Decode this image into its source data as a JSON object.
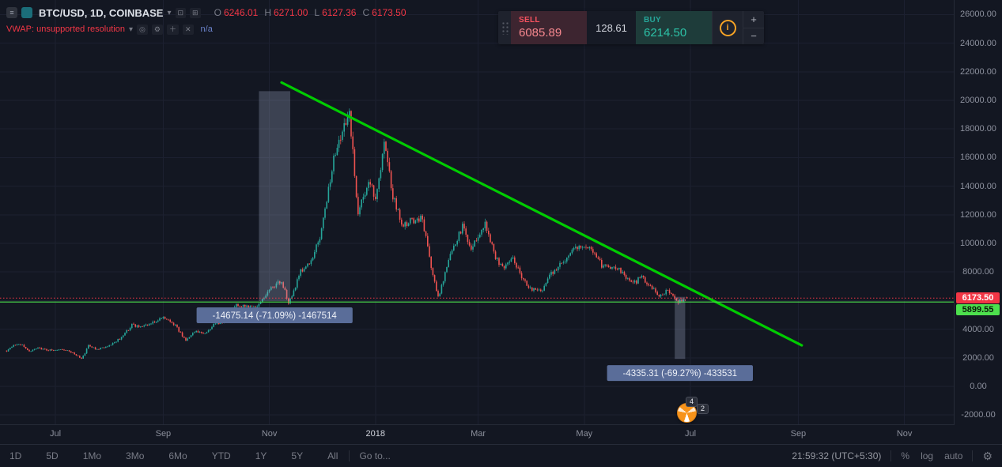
{
  "icons": {
    "menu": "≡",
    "caret_down": "▾",
    "tool1": "⊡",
    "tool2": "⊞",
    "eye": "◎",
    "gear": "⚙",
    "plus_square": "＋",
    "close": "✕",
    "info": "i",
    "plus": "+",
    "minus": "−"
  },
  "header": {
    "symbol_title": "BTC/USD, 1D, COINBASE",
    "ohlc": {
      "o_label": "O",
      "o_value": "6246.01",
      "h_label": "H",
      "h_value": "6271.00",
      "l_label": "L",
      "l_value": "6127.36",
      "c_label": "C",
      "c_value": "6173.50"
    },
    "indicator": {
      "name": "VWAP: unsupported resolution",
      "value": "n/a"
    }
  },
  "trade_widget": {
    "sell_label": "SELL",
    "sell_price": "6085.89",
    "spread": "128.61",
    "buy_label": "BUY",
    "buy_price": "6214.50"
  },
  "price_axis": {
    "labels": [
      {
        "price": 26000,
        "label": "26000.00"
      },
      {
        "price": 24000,
        "label": "24000.00"
      },
      {
        "price": 22000,
        "label": "22000.00"
      },
      {
        "price": 20000,
        "label": "20000.00"
      },
      {
        "price": 18000,
        "label": "18000.00"
      },
      {
        "price": 16000,
        "label": "16000.00"
      },
      {
        "price": 14000,
        "label": "14000.00"
      },
      {
        "price": 12000,
        "label": "12000.00"
      },
      {
        "price": 10000,
        "label": "10000.00"
      },
      {
        "price": 8000,
        "label": "8000.00"
      },
      {
        "price": 4000,
        "label": "4000.00"
      },
      {
        "price": 2000,
        "label": "2000.00"
      },
      {
        "price": 0,
        "label": "0.00"
      },
      {
        "price": -2000,
        "label": "-2000.00"
      }
    ],
    "badges": [
      {
        "price": 6173.5,
        "value": "6173.50",
        "bg": "#f23645",
        "fg": "#ffffff"
      },
      {
        "price": 5899.55,
        "value": "5899.55",
        "bg": "#4de04d",
        "fg": "#0b1a0b"
      }
    ]
  },
  "time_axis": {
    "ticks": [
      {
        "label": "Jul",
        "date": "2017-07-01",
        "year": false
      },
      {
        "label": "Sep",
        "date": "2017-09-01",
        "year": false
      },
      {
        "label": "Nov",
        "date": "2017-11-01",
        "year": false
      },
      {
        "label": "2018",
        "date": "2018-01-01",
        "year": true
      },
      {
        "label": "Mar",
        "date": "2018-03-01",
        "year": false
      },
      {
        "label": "May",
        "date": "2018-05-01",
        "year": false
      },
      {
        "label": "Jul",
        "date": "2018-07-01",
        "year": false
      },
      {
        "label": "Sep",
        "date": "2018-09-01",
        "year": false
      },
      {
        "label": "Nov",
        "date": "2018-11-01",
        "year": false
      }
    ]
  },
  "bottom_toolbar": {
    "ranges": [
      "1D",
      "5D",
      "1Mo",
      "3Mo",
      "6Mo",
      "YTD",
      "1Y",
      "5Y",
      "All"
    ],
    "goto": "Go to...",
    "clock": "21:59:32 (UTC+5:30)",
    "scales": [
      "%",
      "log",
      "auto"
    ]
  },
  "chart_data": {
    "type": "candlestick",
    "symbol": "BTC/USD",
    "interval": "1D",
    "exchange": "COINBASE",
    "last": {
      "open": 6246.01,
      "high": 6271.0,
      "low": 6127.36,
      "close": 6173.5
    },
    "y_axis": {
      "min": -2000,
      "max": 26000,
      "tick_step": 2000
    },
    "colors": {
      "up": "#26a69a",
      "down": "#ef5350",
      "trend": "#00cc00",
      "grid": "#1c2030",
      "measure_fill": "rgba(168,180,208,0.28)",
      "measure_label_bg": "#5a6d99",
      "measure_label_fg": "#edf0f7"
    },
    "price_path": [
      {
        "date": "2017-06-03",
        "price": 2480
      },
      {
        "date": "2017-06-07",
        "price": 2840
      },
      {
        "date": "2017-06-12",
        "price": 2950
      },
      {
        "date": "2017-06-16",
        "price": 2450
      },
      {
        "date": "2017-06-21",
        "price": 2700
      },
      {
        "date": "2017-06-26",
        "price": 2550
      },
      {
        "date": "2017-07-02",
        "price": 2550
      },
      {
        "date": "2017-07-08",
        "price": 2560
      },
      {
        "date": "2017-07-11",
        "price": 2330
      },
      {
        "date": "2017-07-16",
        "price": 1950
      },
      {
        "date": "2017-07-20",
        "price": 2850
      },
      {
        "date": "2017-07-25",
        "price": 2580
      },
      {
        "date": "2017-08-01",
        "price": 2870
      },
      {
        "date": "2017-08-08",
        "price": 3430
      },
      {
        "date": "2017-08-14",
        "price": 4320
      },
      {
        "date": "2017-08-19",
        "price": 4150
      },
      {
        "date": "2017-08-25",
        "price": 4350
      },
      {
        "date": "2017-09-01",
        "price": 4900
      },
      {
        "date": "2017-09-08",
        "price": 4250
      },
      {
        "date": "2017-09-14",
        "price": 3250
      },
      {
        "date": "2017-09-20",
        "price": 3900
      },
      {
        "date": "2017-09-25",
        "price": 3680
      },
      {
        "date": "2017-10-01",
        "price": 4400
      },
      {
        "date": "2017-10-08",
        "price": 4600
      },
      {
        "date": "2017-10-13",
        "price": 5700
      },
      {
        "date": "2017-10-18",
        "price": 5550
      },
      {
        "date": "2017-10-24",
        "price": 5520
      },
      {
        "date": "2017-11-01",
        "price": 6750
      },
      {
        "date": "2017-11-08",
        "price": 7400
      },
      {
        "date": "2017-11-12",
        "price": 5900
      },
      {
        "date": "2017-11-19",
        "price": 8000
      },
      {
        "date": "2017-11-25",
        "price": 8750
      },
      {
        "date": "2017-12-01",
        "price": 10900
      },
      {
        "date": "2017-12-08",
        "price": 16200
      },
      {
        "date": "2017-12-12",
        "price": 17200
      },
      {
        "date": "2017-12-17",
        "price": 19500
      },
      {
        "date": "2017-12-22",
        "price": 12300
      },
      {
        "date": "2017-12-28",
        "price": 14400
      },
      {
        "date": "2018-01-01",
        "price": 13250
      },
      {
        "date": "2018-01-06",
        "price": 17150
      },
      {
        "date": "2018-01-11",
        "price": 13300
      },
      {
        "date": "2018-01-17",
        "price": 11200
      },
      {
        "date": "2018-01-21",
        "price": 11600
      },
      {
        "date": "2018-01-28",
        "price": 11750
      },
      {
        "date": "2018-02-01",
        "price": 9050
      },
      {
        "date": "2018-02-06",
        "price": 6250
      },
      {
        "date": "2018-02-12",
        "price": 8900
      },
      {
        "date": "2018-02-20",
        "price": 11250
      },
      {
        "date": "2018-02-25",
        "price": 9650
      },
      {
        "date": "2018-03-05",
        "price": 11500
      },
      {
        "date": "2018-03-11",
        "price": 9100
      },
      {
        "date": "2018-03-15",
        "price": 8250
      },
      {
        "date": "2018-03-21",
        "price": 8950
      },
      {
        "date": "2018-03-30",
        "price": 6850
      },
      {
        "date": "2018-04-06",
        "price": 6650
      },
      {
        "date": "2018-04-12",
        "price": 7900
      },
      {
        "date": "2018-04-20",
        "price": 8850
      },
      {
        "date": "2018-04-24",
        "price": 9650
      },
      {
        "date": "2018-05-05",
        "price": 9800
      },
      {
        "date": "2018-05-11",
        "price": 8450
      },
      {
        "date": "2018-05-20",
        "price": 8250
      },
      {
        "date": "2018-05-29",
        "price": 7130
      },
      {
        "date": "2018-06-03",
        "price": 7700
      },
      {
        "date": "2018-06-10",
        "price": 6750
      },
      {
        "date": "2018-06-13",
        "price": 6350
      },
      {
        "date": "2018-06-18",
        "price": 6720
      },
      {
        "date": "2018-06-24",
        "price": 5880
      },
      {
        "date": "2018-06-29",
        "price": 6173.5
      }
    ],
    "trend_line": {
      "from": {
        "date": "2017-11-08",
        "price": 21250
      },
      "to": {
        "date": "2018-09-03",
        "price": 2870
      }
    },
    "measurements": [
      {
        "from_date": "2017-10-26",
        "to_date": "2017-11-13",
        "from_price": 20643.04,
        "to_price": 5967.9,
        "label": "-14675.14 (-71.09%) -1467514"
      },
      {
        "from_date": "2018-06-22",
        "to_date": "2018-06-28",
        "from_price": 6258.77,
        "to_price": 1923.46,
        "label": "-4335.31 (-69.27%) -433531"
      }
    ],
    "price_lines": [
      {
        "price": 6173.5,
        "color": "#f23645",
        "style": "dashed"
      },
      {
        "price": 5899.55,
        "color": "#4de04d",
        "style": "solid"
      }
    ],
    "marker_badges": [
      "4",
      "2"
    ]
  }
}
